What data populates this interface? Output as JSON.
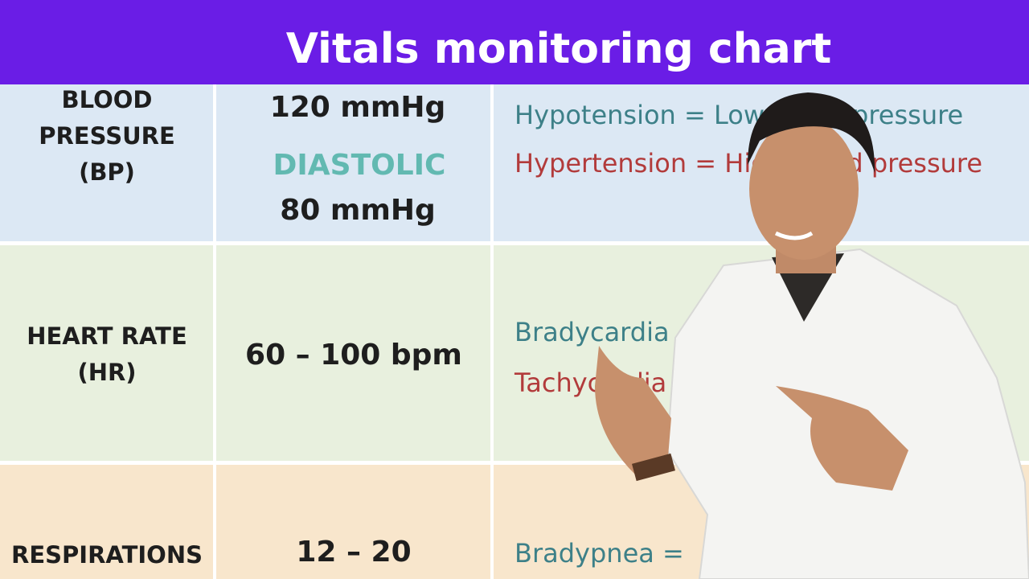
{
  "header": {
    "title": "Vitals monitoring chart"
  },
  "table": {
    "rows": [
      {
        "vital": [
          "BLOOD",
          "PRESSURE",
          "(BP)"
        ],
        "normal": [
          "120 mmHg",
          "DIASTOLIC",
          "80 mmHg"
        ],
        "notes": [
          "Hypotension = Low blood pressure",
          "Hypertension = High blood pressure"
        ]
      },
      {
        "vital": [
          "HEART RATE",
          "(HR)"
        ],
        "normal": [
          "60 – 100 bpm"
        ],
        "notes": [
          "Bradycardia",
          "Tachycardia"
        ]
      },
      {
        "vital": [
          "RESPIRATIONS"
        ],
        "normal": [
          "12 – 20"
        ],
        "notes": [
          "Bradypnea ="
        ]
      }
    ]
  }
}
